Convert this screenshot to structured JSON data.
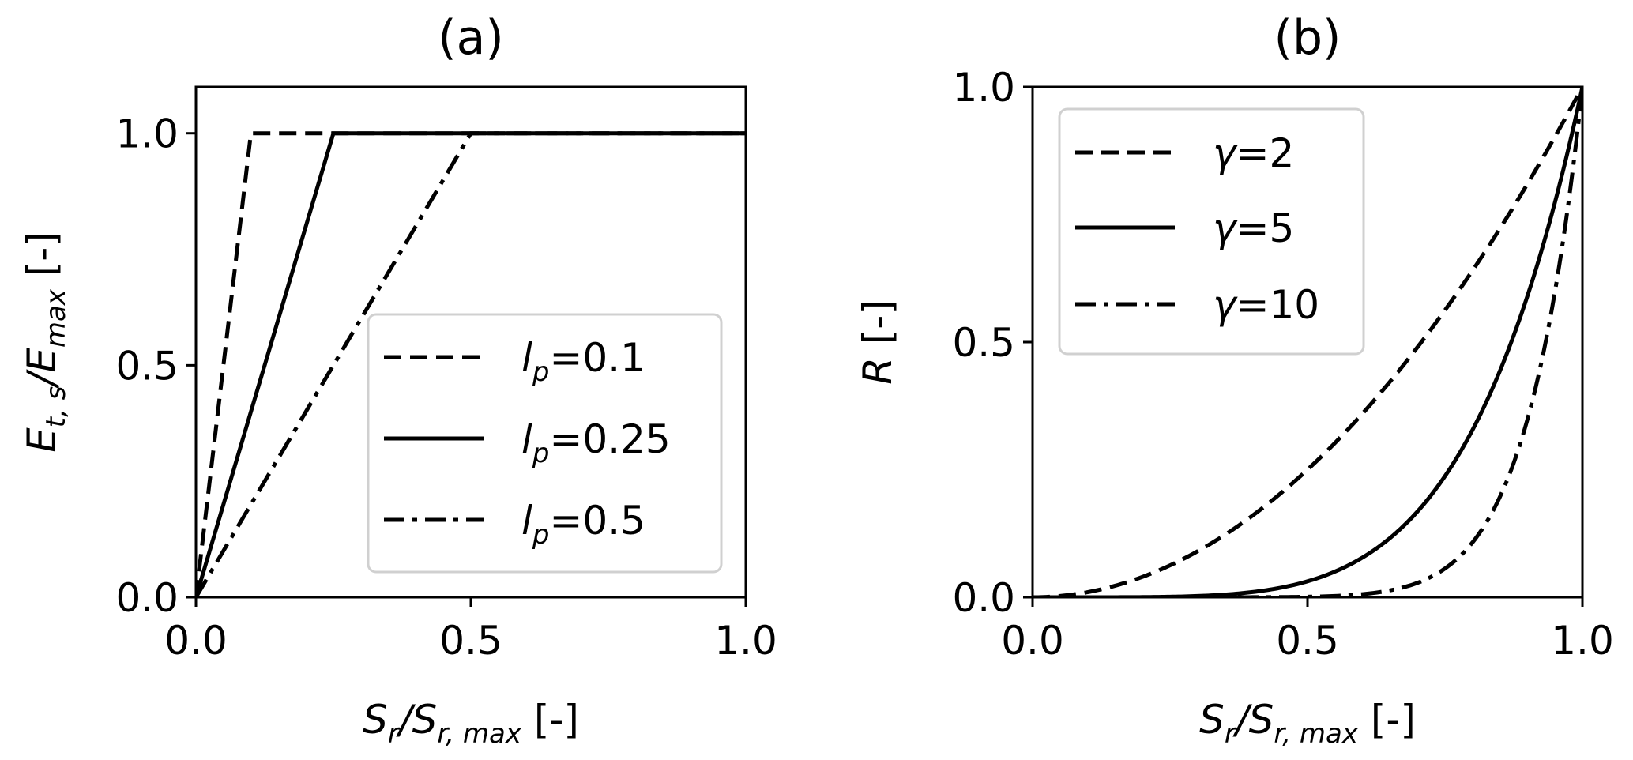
{
  "chart_data": [
    {
      "type": "line",
      "title": "(a)",
      "xlabel": {
        "main": "S",
        "sub1": "r",
        "mid": "/S",
        "sub2": "r, max",
        "unit": " [-]"
      },
      "ylabel": {
        "main": "E",
        "sub1": "t, s",
        "mid": "/E",
        "sub2": "max",
        "unit": " [-]"
      },
      "xlim": [
        0,
        1.0
      ],
      "ylim": [
        0,
        1.1
      ],
      "xticks": [
        0.0,
        0.5,
        1.0
      ],
      "xtick_labels": [
        "0.0",
        "0.5",
        "1.0"
      ],
      "yticks": [
        0.0,
        0.5,
        1.0
      ],
      "ytick_labels": [
        "0.0",
        "0.5",
        "1.0"
      ],
      "grid": false,
      "legend_position": "lower-right",
      "series": [
        {
          "symbol": "l",
          "sub": "p",
          "value_text": "=0.1",
          "style": "dashed",
          "x": [
            0,
            0.1,
            1.0
          ],
          "y": [
            0,
            1.0,
            1.0
          ]
        },
        {
          "symbol": "l",
          "sub": "p",
          "value_text": "=0.25",
          "style": "solid",
          "x": [
            0,
            0.25,
            1.0
          ],
          "y": [
            0,
            1.0,
            1.0
          ]
        },
        {
          "symbol": "l",
          "sub": "p",
          "value_text": "=0.5",
          "style": "dashdot",
          "x": [
            0,
            0.5,
            1.0
          ],
          "y": [
            0,
            1.0,
            1.0
          ]
        }
      ]
    },
    {
      "type": "line",
      "title": "(b)",
      "xlabel": {
        "main": "S",
        "sub1": "r",
        "mid": "/S",
        "sub2": "r, max",
        "unit": " [-]"
      },
      "ylabel": {
        "main": "R",
        "unit": " [-]"
      },
      "xlim": [
        0,
        1.0
      ],
      "ylim": [
        0,
        1.0
      ],
      "xticks": [
        0.0,
        0.5,
        1.0
      ],
      "xtick_labels": [
        "0.0",
        "0.5",
        "1.0"
      ],
      "yticks": [
        0.0,
        0.5,
        1.0
      ],
      "ytick_labels": [
        "0.0",
        "0.5",
        "1.0"
      ],
      "grid": false,
      "legend_position": "upper-left",
      "series": [
        {
          "symbol": "γ",
          "value_text": "=2",
          "style": "dashed",
          "exponent": 2,
          "x": [
            0,
            0.1,
            0.2,
            0.3,
            0.4,
            0.5,
            0.6,
            0.7,
            0.8,
            0.9,
            1.0
          ],
          "y": [
            0,
            0.01,
            0.04,
            0.09,
            0.16,
            0.25,
            0.36,
            0.49,
            0.64,
            0.81,
            1.0
          ]
        },
        {
          "symbol": "γ",
          "value_text": "=5",
          "style": "solid",
          "exponent": 5,
          "x": [
            0,
            0.1,
            0.2,
            0.3,
            0.4,
            0.5,
            0.6,
            0.7,
            0.8,
            0.9,
            1.0
          ],
          "y": [
            0,
            1e-05,
            0.00032,
            0.00243,
            0.01024,
            0.03125,
            0.07776,
            0.16807,
            0.32768,
            0.59049,
            1.0
          ]
        },
        {
          "symbol": "γ",
          "value_text": "=10",
          "style": "dashdot",
          "exponent": 10,
          "x": [
            0,
            0.1,
            0.2,
            0.3,
            0.4,
            0.5,
            0.6,
            0.7,
            0.8,
            0.9,
            1.0
          ],
          "y": [
            0,
            0.0,
            0.0,
            5.9e-06,
            0.000105,
            0.000977,
            0.00605,
            0.0282,
            0.107,
            0.349,
            1.0
          ]
        }
      ]
    }
  ]
}
